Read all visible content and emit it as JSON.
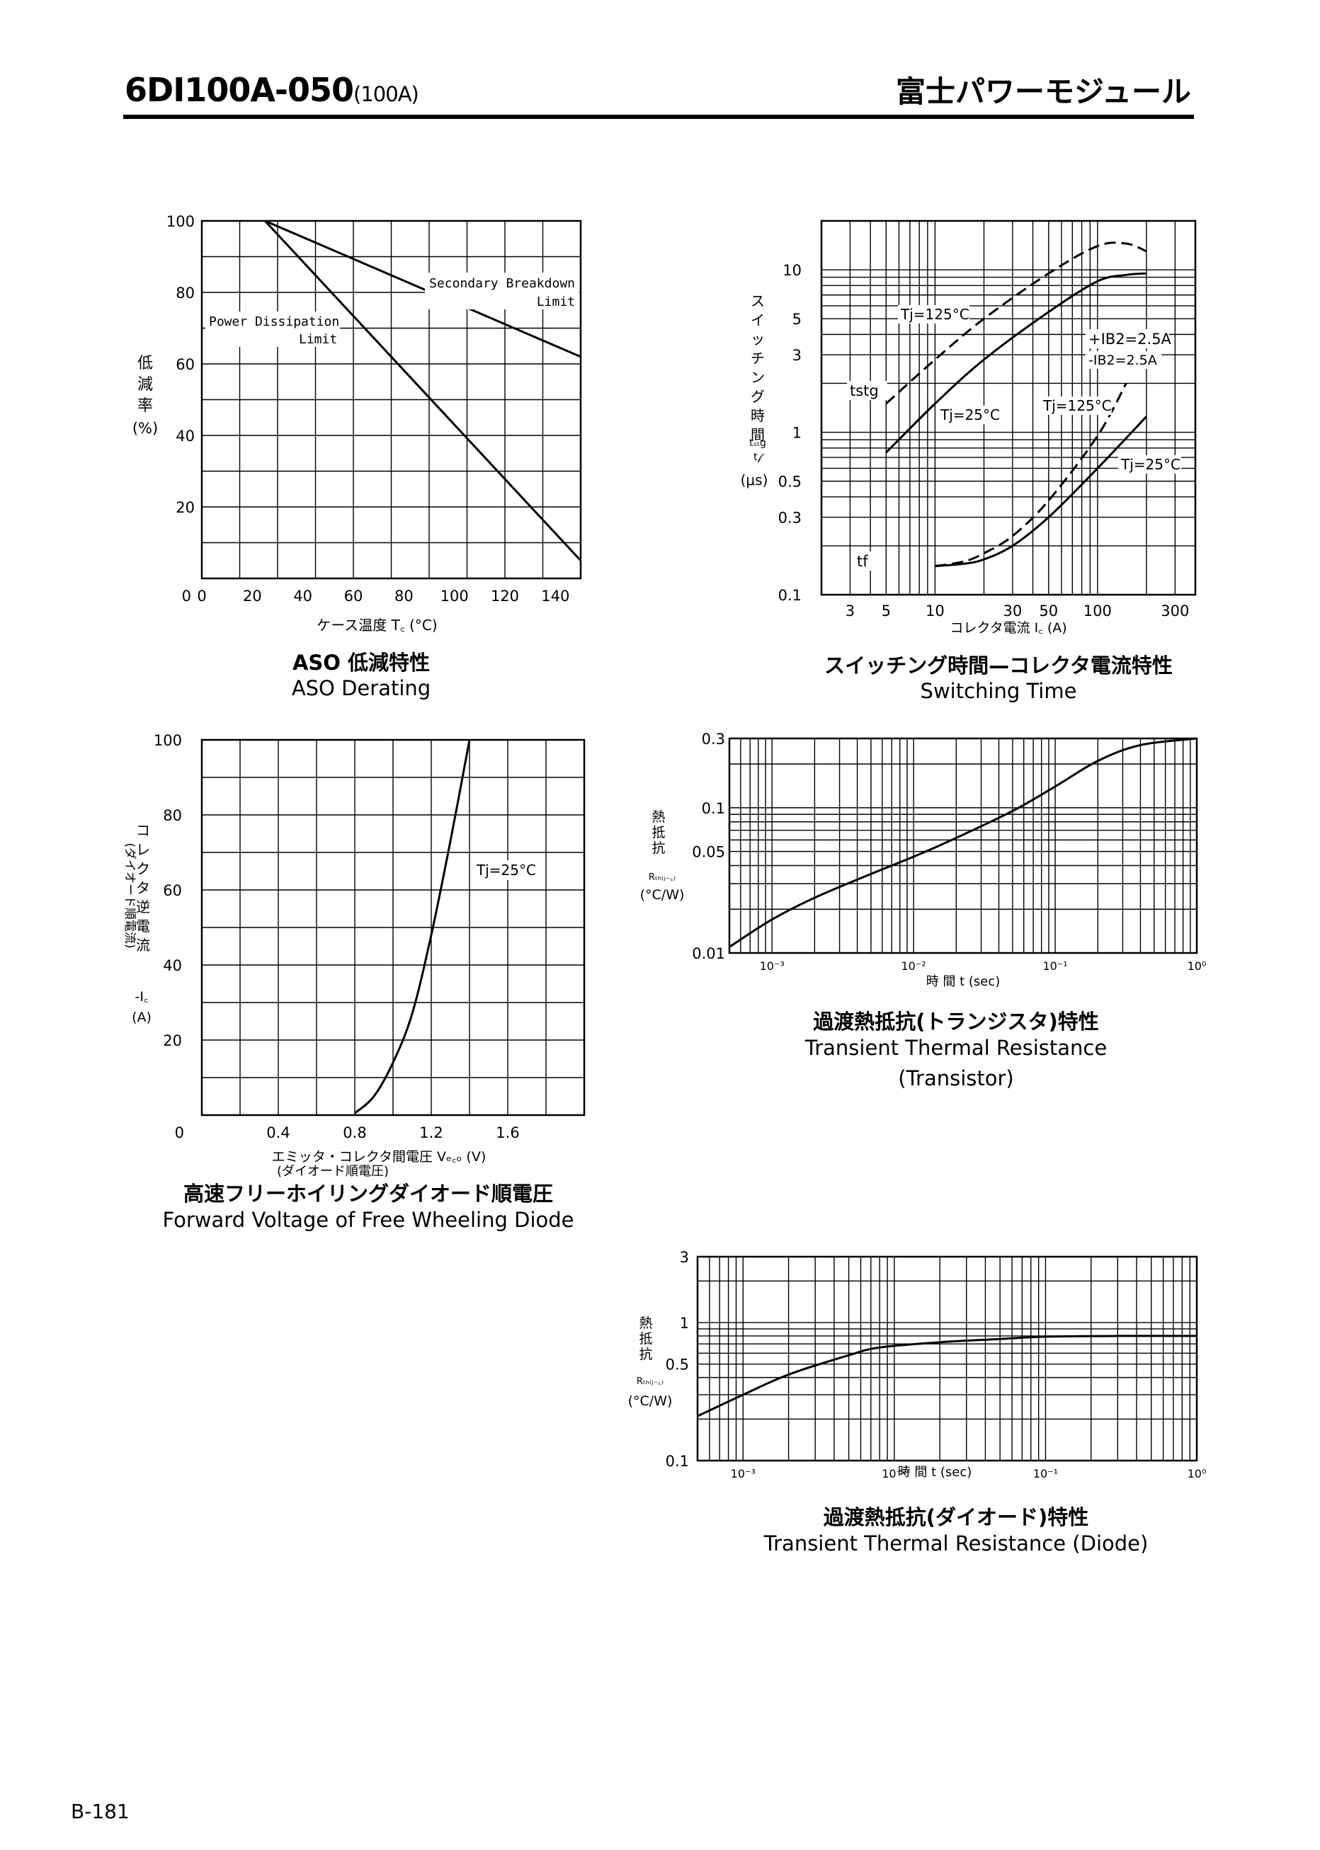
{
  "header": {
    "model": "6DI100A-050",
    "rating": "(100A)",
    "brand": "富士パワーモジュール"
  },
  "footer": {
    "page": "B-181"
  },
  "colors": {
    "ink": "#000000",
    "paper": "#ffffff"
  },
  "chart_data": [
    {
      "id": "aso",
      "type": "line",
      "title": "ASO 低減特性",
      "subtitle": "ASO Derating",
      "xlabel": "ケース温度 T꜀ (°C)",
      "ylabel": [
        "低",
        "減",
        "率",
        "(%)"
      ],
      "xlim": [
        0,
        150
      ],
      "ylim": [
        0,
        100
      ],
      "xticks": [
        0,
        20,
        40,
        60,
        80,
        100,
        120,
        140
      ],
      "xtick_labels": [
        "0",
        "20",
        "40",
        "60",
        "80",
        "100",
        "120",
        "140"
      ],
      "yticks": [
        20,
        40,
        60,
        80,
        100
      ],
      "ytick_labels": [
        "20",
        "40",
        "60",
        "80",
        "100"
      ],
      "origin_label": "0",
      "series": [
        {
          "name": "Secondary Breakdown Limit",
          "x": [
            25,
            150
          ],
          "y": [
            100,
            62
          ]
        },
        {
          "name": "Power Dissipation Limit",
          "x": [
            25,
            150
          ],
          "y": [
            100,
            5
          ]
        }
      ],
      "annotations": [
        "Secondary Breakdown",
        "Limit",
        "Power Dissipation",
        "Limit"
      ]
    },
    {
      "id": "switching",
      "type": "line",
      "title": "スイッチング時間—コレクタ電流特性",
      "subtitle": "Switching Time",
      "xlabel": "コレクタ電流 I꜀ (A)",
      "ylabel": [
        "ス",
        "イ",
        "ッ",
        "チ",
        "ン",
        "グ",
        "時",
        "間"
      ],
      "ylabel_sym": [
        "tₛₜg",
        "t𝒻",
        "(μs)"
      ],
      "xscale": "log",
      "yscale": "log",
      "xlim": [
        2,
        400
      ],
      "ylim": [
        0.1,
        20
      ],
      "xticks": [
        3,
        5,
        10,
        30,
        50,
        100,
        300
      ],
      "xtick_labels": [
        "3",
        "5",
        "10",
        "30",
        "50",
        "100",
        "300"
      ],
      "yticks": [
        0.1,
        0.3,
        0.5,
        1,
        3,
        5,
        10
      ],
      "ytick_labels": [
        "0.1",
        "0.3",
        "0.5",
        "1",
        "3",
        "5",
        "10"
      ],
      "series": [
        {
          "name": "tstg Tj=125°C",
          "dashed": true,
          "x": [
            5,
            10,
            20,
            50,
            100,
            150,
            200
          ],
          "y": [
            1.5,
            2.8,
            5.0,
            9.5,
            14,
            14.5,
            13
          ]
        },
        {
          "name": "tstg Tj=25°C",
          "dashed": false,
          "x": [
            5,
            10,
            20,
            50,
            100,
            150,
            200
          ],
          "y": [
            0.75,
            1.5,
            2.8,
            5.5,
            8.5,
            9.3,
            9.5
          ]
        },
        {
          "name": "tf Tj=125°C",
          "dashed": true,
          "x": [
            10,
            15,
            20,
            30,
            50,
            100,
            150
          ],
          "y": [
            0.15,
            0.16,
            0.18,
            0.23,
            0.38,
            0.95,
            2.0
          ]
        },
        {
          "name": "tf Tj=25°C",
          "dashed": false,
          "x": [
            10,
            15,
            20,
            30,
            50,
            100,
            200
          ],
          "y": [
            0.15,
            0.155,
            0.165,
            0.2,
            0.3,
            0.6,
            1.25
          ]
        }
      ],
      "annotations": [
        "Tj=125°C",
        "Tj=25°C",
        "Tj=125°C",
        "Tj=25°C",
        "tstg",
        "tf",
        "+IB2=2.5A",
        "-IB2=2.5A"
      ]
    },
    {
      "id": "fwd",
      "type": "line",
      "title": "高速フリーホイリングダイオード順電圧",
      "subtitle": "Forward Voltage of Free Wheeling Diode",
      "xlabel": "エミッタ・コレクタ間電圧 Vₑ꜀ₒ (V)",
      "xlabel2": "(ダイオード順電圧)",
      "ylabel": [
        "コ",
        "レ",
        "ク",
        "タ",
        "逆",
        "電",
        "流"
      ],
      "ylabel2": "(ダイオード順電流)",
      "ylabel_sym": [
        "-I꜀",
        "(A)"
      ],
      "xlim": [
        0,
        2.0
      ],
      "ylim": [
        0,
        100
      ],
      "xticks": [
        0.4,
        0.8,
        1.2,
        1.6
      ],
      "xtick_labels": [
        "0.4",
        "0.8",
        "1.2",
        "1.6"
      ],
      "yticks": [
        20,
        40,
        60,
        80,
        100
      ],
      "ytick_labels": [
        "20",
        "40",
        "60",
        "80",
        "100"
      ],
      "origin_label": "0",
      "series": [
        {
          "name": "Tj=25°C",
          "x": [
            0.8,
            0.9,
            1.0,
            1.1,
            1.2,
            1.3,
            1.4
          ],
          "y": [
            0.5,
            5,
            14,
            27,
            48,
            73,
            100
          ]
        }
      ],
      "annotations": [
        "Tj=25°C"
      ]
    },
    {
      "id": "rth_tr",
      "type": "line",
      "title": "過渡熱抵抗(トランジスタ)特性",
      "subtitle": "Transient Thermal Resistance",
      "subtitle2": "(Transistor)",
      "xlabel": "時 間 t (sec)",
      "ylabel": [
        "熱",
        "抵",
        "抗"
      ],
      "ylabel_sym": [
        "Rₜₕ₍ⱼ₋꜀₎",
        "(°C/W)"
      ],
      "xscale": "log",
      "yscale": "log",
      "xlim": [
        0.0005,
        1
      ],
      "ylim": [
        0.01,
        0.3
      ],
      "xticks": [
        0.001,
        0.01,
        0.1,
        1
      ],
      "xtick_labels": [
        "10⁻³",
        "10⁻²",
        "10⁻¹",
        "10⁰"
      ],
      "yticks": [
        0.01,
        0.05,
        0.1,
        0.3
      ],
      "ytick_labels": [
        "0.01",
        "0.05",
        "0.1",
        "0.3"
      ],
      "series": [
        {
          "name": "Transistor",
          "x": [
            0.0005,
            0.001,
            0.002,
            0.005,
            0.01,
            0.02,
            0.05,
            0.1,
            0.2,
            0.4,
            1
          ],
          "y": [
            0.011,
            0.017,
            0.024,
            0.035,
            0.046,
            0.062,
            0.095,
            0.14,
            0.21,
            0.27,
            0.3
          ]
        }
      ]
    },
    {
      "id": "rth_di",
      "type": "line",
      "title": "過渡熱抵抗(ダイオード)特性",
      "subtitle": "Transient Thermal Resistance (Diode)",
      "xlabel": "時 間 t (sec)",
      "ylabel": [
        "熱",
        "抵",
        "抗"
      ],
      "ylabel_sym": [
        "Rₜₕ₍ⱼ₋꜀₎",
        "(°C/W)"
      ],
      "xscale": "log",
      "yscale": "log",
      "xlim": [
        0.0005,
        1
      ],
      "ylim": [
        0.1,
        3
      ],
      "xticks": [
        0.001,
        0.01,
        0.1,
        1
      ],
      "xtick_labels": [
        "10⁻³",
        "10⁻²",
        "10⁻¹",
        "10⁰"
      ],
      "yticks": [
        0.1,
        0.5,
        1,
        3
      ],
      "ytick_labels": [
        "0.1",
        "0.5",
        "1",
        "3"
      ],
      "series": [
        {
          "name": "Diode",
          "x": [
            0.0005,
            0.001,
            0.002,
            0.005,
            0.008,
            0.02,
            0.05,
            0.1,
            0.3,
            1
          ],
          "y": [
            0.21,
            0.3,
            0.42,
            0.58,
            0.66,
            0.72,
            0.76,
            0.79,
            0.8,
            0.8
          ]
        }
      ]
    }
  ]
}
